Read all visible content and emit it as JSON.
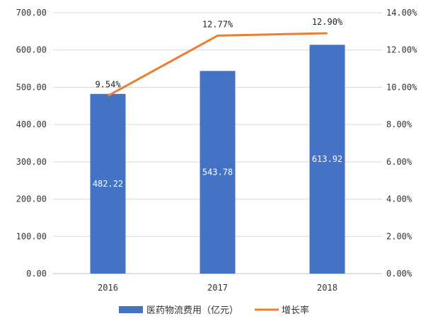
{
  "chart_data": {
    "type": "bar+line",
    "categories": [
      "2016",
      "2017",
      "2018"
    ],
    "series": [
      {
        "name": "医药物流费用（亿元）",
        "type": "bar",
        "axis": "left",
        "values": [
          482.22,
          543.78,
          613.92
        ],
        "labels": [
          "482.22",
          "543.78",
          "613.92"
        ],
        "color": "#4472C4"
      },
      {
        "name": "增长率",
        "type": "line",
        "axis": "right",
        "values": [
          9.54,
          12.77,
          12.9
        ],
        "labels": [
          "9.54%",
          "12.77%",
          "12.90%"
        ],
        "color": "#ED7D31"
      }
    ],
    "left_axis": {
      "ylim": [
        0,
        700
      ],
      "ticks": [
        "0.00",
        "100.00",
        "200.00",
        "300.00",
        "400.00",
        "500.00",
        "600.00",
        "700.00"
      ]
    },
    "right_axis": {
      "ylim": [
        0,
        14
      ],
      "ticks": [
        "0.00%",
        "2.00%",
        "4.00%",
        "6.00%",
        "8.00%",
        "10.00%",
        "12.00%",
        "14.00%"
      ]
    },
    "grid": true,
    "legend": "bottom"
  }
}
